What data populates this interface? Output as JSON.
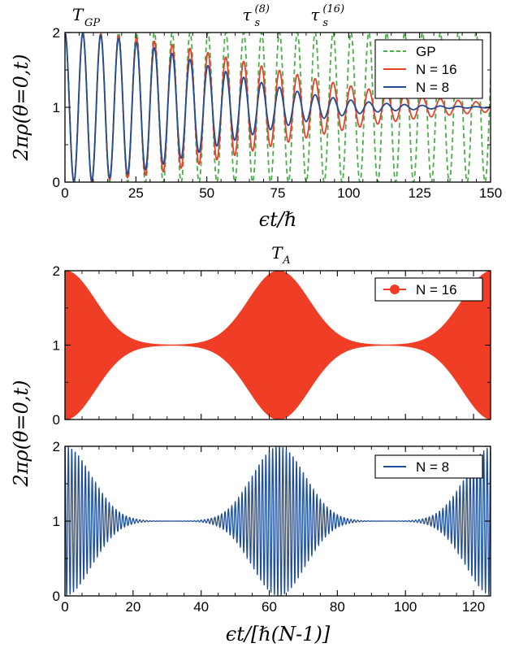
{
  "chart_data": [
    {
      "type": "line",
      "xlabel": "ϵt/ℏ",
      "ylabel": "2πρ(θ=0,t)",
      "xlim": [
        0,
        150
      ],
      "ylim": [
        0,
        2
      ],
      "xticks": [
        "0",
        "25",
        "50",
        "75",
        "100",
        "125",
        "150"
      ],
      "yticks": [
        "0",
        "1",
        "2"
      ],
      "annotations": [
        {
          "text": "T",
          "sub": "GP",
          "x": 6
        },
        {
          "text": "τ",
          "sub": "s",
          "sup": "(8)",
          "x": 66
        },
        {
          "text": "τ",
          "sub": "s",
          "sup": "(16)",
          "x": 90
        }
      ],
      "legend": "top-right",
      "series": [
        {
          "name": "GP",
          "color": "#4daf4a",
          "style": "dashed",
          "period": 6.3,
          "amplitude": 1.0,
          "coherence_time": null
        },
        {
          "name": "N = 16",
          "color": "#e8402a",
          "style": "solid",
          "period": 6.3,
          "amplitude": 1.0,
          "coherence_time": 90
        },
        {
          "name": "N = 8",
          "color": "#1f4e96",
          "style": "solid",
          "period": 6.3,
          "amplitude": 1.0,
          "coherence_time": 66
        }
      ]
    },
    {
      "type": "area",
      "xlabel": "ϵt/[ℏ(N-1)]",
      "ylabel": "2πρ(θ=0,t)",
      "xlim": [
        0,
        125
      ],
      "ylim": [
        0,
        2
      ],
      "xticks": [],
      "yticks": [
        "0",
        "1",
        "2"
      ],
      "annotations": [
        {
          "text": "T",
          "sub": "A",
          "x": 62.8
        }
      ],
      "legend": "top-right",
      "series": [
        {
          "name": "N = 16",
          "color": "#f03e26",
          "revival_period": 62.8
        }
      ]
    },
    {
      "type": "line",
      "xlabel": "ϵt/[ℏ(N-1)]",
      "ylabel": "2πρ(θ=0,t)",
      "xlim": [
        0,
        125
      ],
      "ylim": [
        0,
        2
      ],
      "xticks": [
        "0",
        "20",
        "40",
        "60",
        "80",
        "100",
        "120"
      ],
      "yticks": [
        "0",
        "1",
        "2"
      ],
      "legend": "top-right",
      "series": [
        {
          "name": "N = 8",
          "color": "#1f4e96",
          "revival_period": 62.8,
          "oscillation_period": 1.0
        }
      ]
    }
  ],
  "labels": {
    "top_ylabel": "2πρ(θ=0,t)",
    "top_xlabel": "ϵt/ℏ",
    "bottom_ylabel": "2πρ(θ=0,t)",
    "bottom_xlabel": "ϵt/[ℏ(N-1)]"
  },
  "colors": {
    "gp": "#4daf4a",
    "n16": "#e8402a",
    "n16_fill": "#f03e26",
    "n8": "#1f4e96"
  }
}
